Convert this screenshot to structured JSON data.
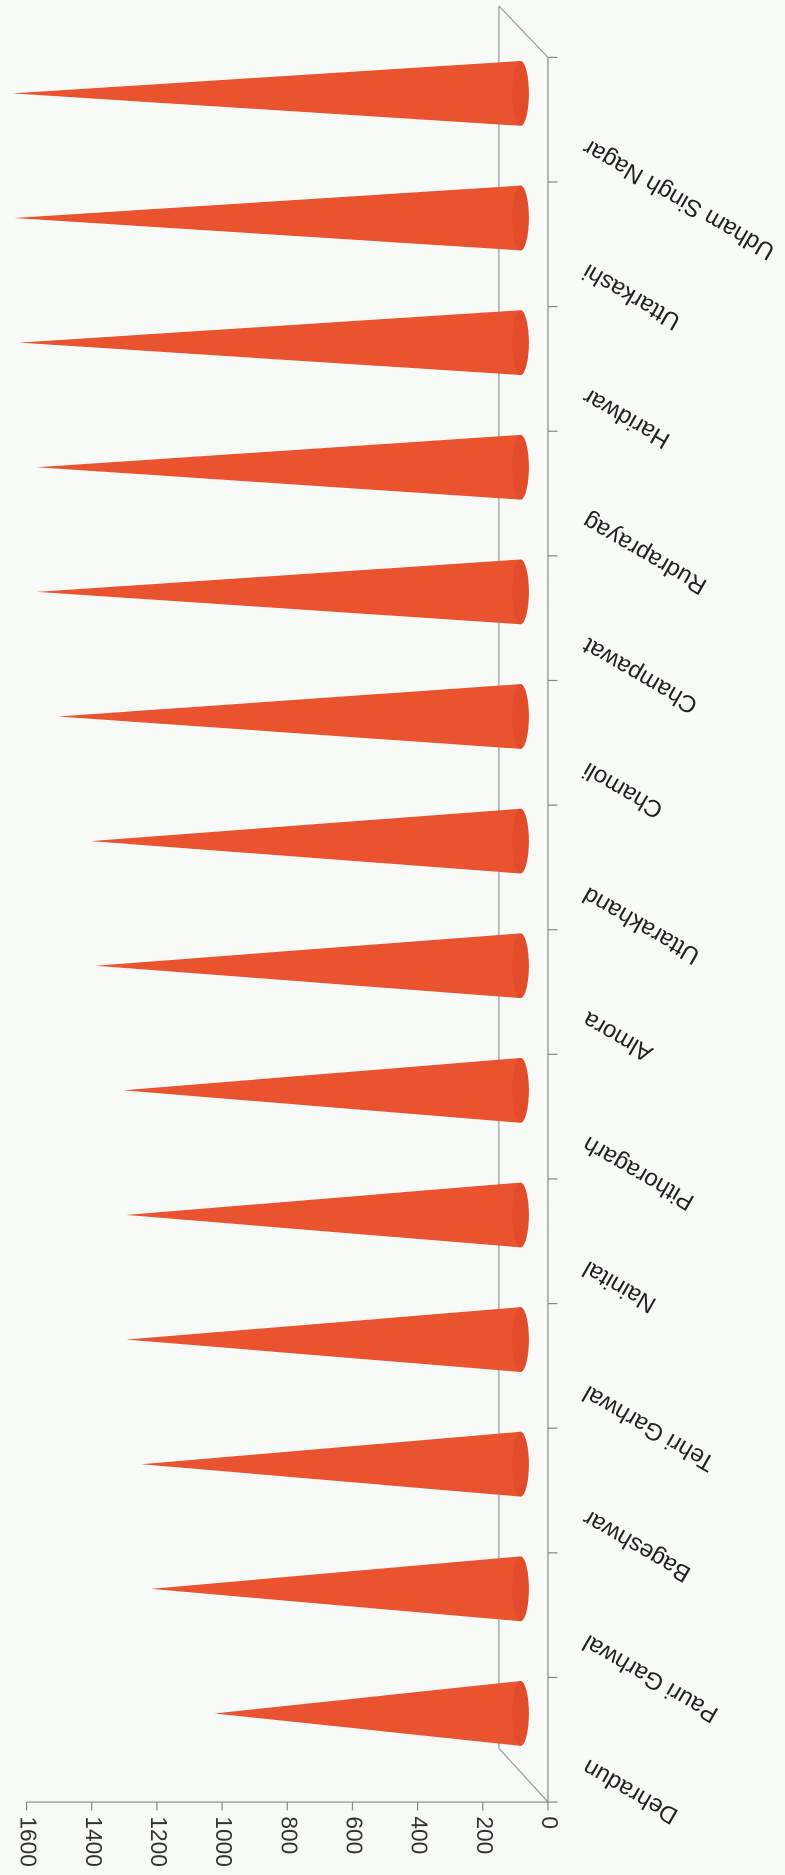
{
  "chart_data": {
    "type": "cone-bar",
    "categories": [
      "Dehradun",
      "Pauri Garhwal",
      "Bageshwar",
      "Tehri Garhwal",
      "Nainital",
      "Pithoragarh",
      "Almora",
      "Uttarakhand",
      "Chamoli",
      "Champawat",
      "Rudraprayag",
      "Haridwar",
      "Uttarkashi",
      "Udham Singh Nagar"
    ],
    "values": [
      950,
      1145,
      1175,
      1220,
      1220,
      1230,
      1315,
      1330,
      1430,
      1495,
      1495,
      1550,
      1565,
      1570
    ],
    "color": "#e9532f",
    "ylim": [
      0,
      1600
    ],
    "yticks": [
      0,
      200,
      400,
      600,
      800,
      1000,
      1200,
      1400,
      1600
    ]
  }
}
